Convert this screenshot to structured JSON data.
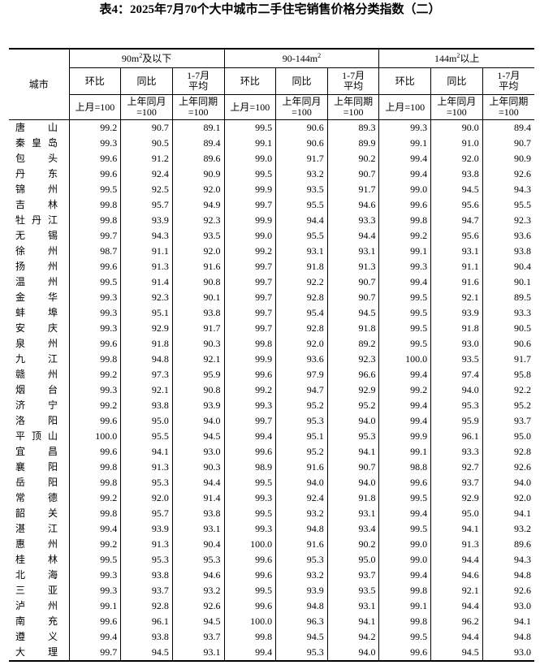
{
  "title": "表4：2025年7月70个大中城市二手住宅销售价格分类指数（二）",
  "header": {
    "city": "城市",
    "groups": [
      {
        "pre": "90m",
        "sup": "2",
        "post": "及以下"
      },
      {
        "pre": "90-144m",
        "sup": "2",
        "post": ""
      },
      {
        "pre": "144m",
        "sup": "2",
        "post": "以上"
      }
    ],
    "sub": [
      {
        "l1": "环比",
        "l2": "",
        "base1": "上月=100",
        "base2": ""
      },
      {
        "l1": "同比",
        "l2": "",
        "base1": "上年同月",
        "base2": "=100"
      },
      {
        "l1": "1-7月",
        "l2": "平均",
        "base1": "上年同期",
        "base2": "=100"
      }
    ]
  },
  "rows": [
    {
      "city": "唐山",
      "v": [
        "99.2",
        "90.7",
        "89.1",
        "99.5",
        "90.6",
        "89.3",
        "99.3",
        "90.0",
        "89.4"
      ]
    },
    {
      "city": "秦皇岛",
      "v": [
        "99.3",
        "90.5",
        "89.4",
        "99.1",
        "90.6",
        "89.9",
        "99.1",
        "91.0",
        "90.7"
      ]
    },
    {
      "city": "包头",
      "v": [
        "99.6",
        "91.2",
        "89.6",
        "99.0",
        "91.7",
        "90.2",
        "99.4",
        "92.0",
        "90.9"
      ]
    },
    {
      "city": "丹东",
      "v": [
        "99.6",
        "92.4",
        "90.9",
        "99.5",
        "93.2",
        "90.7",
        "99.4",
        "93.8",
        "92.6"
      ]
    },
    {
      "city": "锦州",
      "v": [
        "99.5",
        "92.5",
        "92.0",
        "99.9",
        "93.5",
        "91.7",
        "99.0",
        "94.5",
        "94.3"
      ]
    },
    {
      "city": "吉林",
      "v": [
        "99.8",
        "95.7",
        "94.9",
        "99.7",
        "95.5",
        "94.6",
        "99.6",
        "95.6",
        "95.5"
      ]
    },
    {
      "city": "牡丹江",
      "v": [
        "99.8",
        "93.9",
        "92.3",
        "99.9",
        "94.4",
        "93.3",
        "99.8",
        "94.7",
        "92.3"
      ]
    },
    {
      "city": "无锡",
      "v": [
        "99.7",
        "94.3",
        "93.5",
        "99.0",
        "95.5",
        "94.4",
        "99.2",
        "95.6",
        "93.6"
      ]
    },
    {
      "city": "徐州",
      "v": [
        "98.7",
        "91.1",
        "92.0",
        "99.2",
        "93.1",
        "93.1",
        "99.1",
        "93.1",
        "93.8"
      ]
    },
    {
      "city": "扬州",
      "v": [
        "99.6",
        "91.3",
        "91.6",
        "99.7",
        "91.8",
        "91.3",
        "99.3",
        "91.1",
        "90.4"
      ]
    },
    {
      "city": "温州",
      "v": [
        "99.5",
        "91.4",
        "90.8",
        "99.7",
        "92.2",
        "90.7",
        "99.4",
        "91.6",
        "90.1"
      ]
    },
    {
      "city": "金华",
      "v": [
        "99.3",
        "92.3",
        "90.1",
        "99.7",
        "92.8",
        "90.7",
        "99.5",
        "92.1",
        "89.5"
      ]
    },
    {
      "city": "蚌埠",
      "v": [
        "99.3",
        "95.1",
        "93.8",
        "99.7",
        "95.4",
        "94.5",
        "99.5",
        "93.9",
        "93.3"
      ]
    },
    {
      "city": "安庆",
      "v": [
        "99.3",
        "92.9",
        "91.7",
        "99.7",
        "92.8",
        "91.8",
        "99.5",
        "91.8",
        "90.5"
      ]
    },
    {
      "city": "泉州",
      "v": [
        "99.6",
        "91.8",
        "90.3",
        "99.8",
        "92.0",
        "89.2",
        "99.5",
        "93.0",
        "90.6"
      ]
    },
    {
      "city": "九江",
      "v": [
        "99.8",
        "94.8",
        "92.1",
        "99.9",
        "93.6",
        "92.3",
        "100.0",
        "93.5",
        "91.7"
      ]
    },
    {
      "city": "赣州",
      "v": [
        "99.2",
        "97.3",
        "95.9",
        "99.6",
        "97.9",
        "96.6",
        "99.4",
        "97.4",
        "95.8"
      ]
    },
    {
      "city": "烟台",
      "v": [
        "99.3",
        "92.1",
        "90.8",
        "99.2",
        "94.7",
        "92.9",
        "99.2",
        "94.0",
        "92.2"
      ]
    },
    {
      "city": "济宁",
      "v": [
        "99.2",
        "93.8",
        "93.9",
        "99.3",
        "95.2",
        "95.2",
        "99.4",
        "95.3",
        "95.2"
      ]
    },
    {
      "city": "洛阳",
      "v": [
        "99.6",
        "95.0",
        "94.0",
        "99.7",
        "95.3",
        "94.0",
        "99.4",
        "95.9",
        "93.7"
      ]
    },
    {
      "city": "平顶山",
      "v": [
        "100.0",
        "95.5",
        "94.5",
        "99.4",
        "95.1",
        "95.3",
        "99.9",
        "96.1",
        "95.0"
      ]
    },
    {
      "city": "宜昌",
      "v": [
        "99.6",
        "94.1",
        "93.0",
        "99.6",
        "95.2",
        "94.1",
        "99.1",
        "93.3",
        "92.8"
      ]
    },
    {
      "city": "襄阳",
      "v": [
        "99.8",
        "91.3",
        "90.3",
        "98.9",
        "91.6",
        "90.7",
        "98.8",
        "92.7",
        "92.6"
      ]
    },
    {
      "city": "岳阳",
      "v": [
        "99.8",
        "95.3",
        "94.4",
        "99.5",
        "94.0",
        "94.0",
        "99.6",
        "93.7",
        "94.0"
      ]
    },
    {
      "city": "常德",
      "v": [
        "99.2",
        "92.0",
        "91.4",
        "99.3",
        "92.4",
        "91.8",
        "99.5",
        "92.9",
        "92.0"
      ]
    },
    {
      "city": "韶关",
      "v": [
        "99.8",
        "95.7",
        "93.8",
        "99.5",
        "93.2",
        "93.1",
        "99.4",
        "95.0",
        "94.1"
      ]
    },
    {
      "city": "湛江",
      "v": [
        "99.4",
        "93.9",
        "93.1",
        "99.3",
        "94.8",
        "93.4",
        "99.5",
        "94.1",
        "93.2"
      ]
    },
    {
      "city": "惠州",
      "v": [
        "99.2",
        "91.3",
        "90.4",
        "100.0",
        "91.6",
        "90.2",
        "99.0",
        "91.3",
        "89.6"
      ]
    },
    {
      "city": "桂林",
      "v": [
        "99.5",
        "95.3",
        "95.3",
        "99.6",
        "95.3",
        "95.0",
        "99.0",
        "94.4",
        "94.3"
      ]
    },
    {
      "city": "北海",
      "v": [
        "99.3",
        "93.8",
        "94.6",
        "99.6",
        "93.2",
        "93.7",
        "99.4",
        "94.6",
        "94.8"
      ]
    },
    {
      "city": "三亚",
      "v": [
        "99.3",
        "93.7",
        "93.2",
        "99.5",
        "93.9",
        "93.5",
        "99.8",
        "92.1",
        "92.6"
      ]
    },
    {
      "city": "泸州",
      "v": [
        "99.1",
        "92.8",
        "92.6",
        "99.6",
        "94.8",
        "93.1",
        "99.1",
        "94.4",
        "93.0"
      ]
    },
    {
      "city": "南充",
      "v": [
        "99.6",
        "96.1",
        "94.5",
        "100.0",
        "96.3",
        "94.1",
        "99.8",
        "96.2",
        "94.1"
      ]
    },
    {
      "city": "遵义",
      "v": [
        "99.4",
        "93.8",
        "93.7",
        "99.8",
        "94.5",
        "94.2",
        "99.5",
        "94.4",
        "94.8"
      ]
    },
    {
      "city": "大理",
      "v": [
        "99.7",
        "94.5",
        "93.1",
        "99.4",
        "95.3",
        "94.0",
        "99.6",
        "94.5",
        "93.0"
      ]
    }
  ]
}
